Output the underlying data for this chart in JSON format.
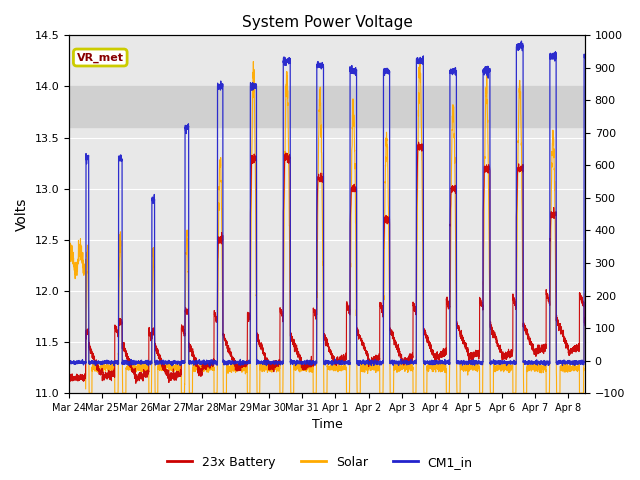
{
  "title": "System Power Voltage",
  "xlabel": "Time",
  "ylabel_left": "Volts",
  "xlim": [
    0,
    15.5
  ],
  "ylim_left": [
    11.0,
    14.5
  ],
  "ylim_right": [
    -100,
    1000
  ],
  "yticks_left": [
    11.0,
    11.5,
    12.0,
    12.5,
    13.0,
    13.5,
    14.0,
    14.5
  ],
  "yticks_right": [
    -100,
    0,
    100,
    200,
    300,
    400,
    500,
    600,
    700,
    800,
    900,
    1000
  ],
  "xtick_labels": [
    "Mar 24",
    "Mar 25",
    "Mar 26",
    "Mar 27",
    "Mar 28",
    "Mar 29",
    "Mar 30",
    "Mar 31",
    "Apr 1",
    "Apr 2",
    "Apr 3",
    "Apr 4",
    "Apr 5",
    "Apr 6",
    "Apr 7",
    "Apr 8"
  ],
  "shaded_ymin": 13.6,
  "shaded_ymax": 14.0,
  "annotation_text": "VR_met",
  "legend_entries": [
    "23x Battery",
    "Solar",
    "CM1_in"
  ],
  "color_battery": "#cc0000",
  "color_solar": "#ffaa00",
  "color_cm1": "#2222cc",
  "annotation_box_color": "#cccc00",
  "annotation_text_color": "#880000",
  "background_color": "#e8e8e8",
  "shaded_color": "#d0d0d0",
  "grid_color": "#ffffff"
}
